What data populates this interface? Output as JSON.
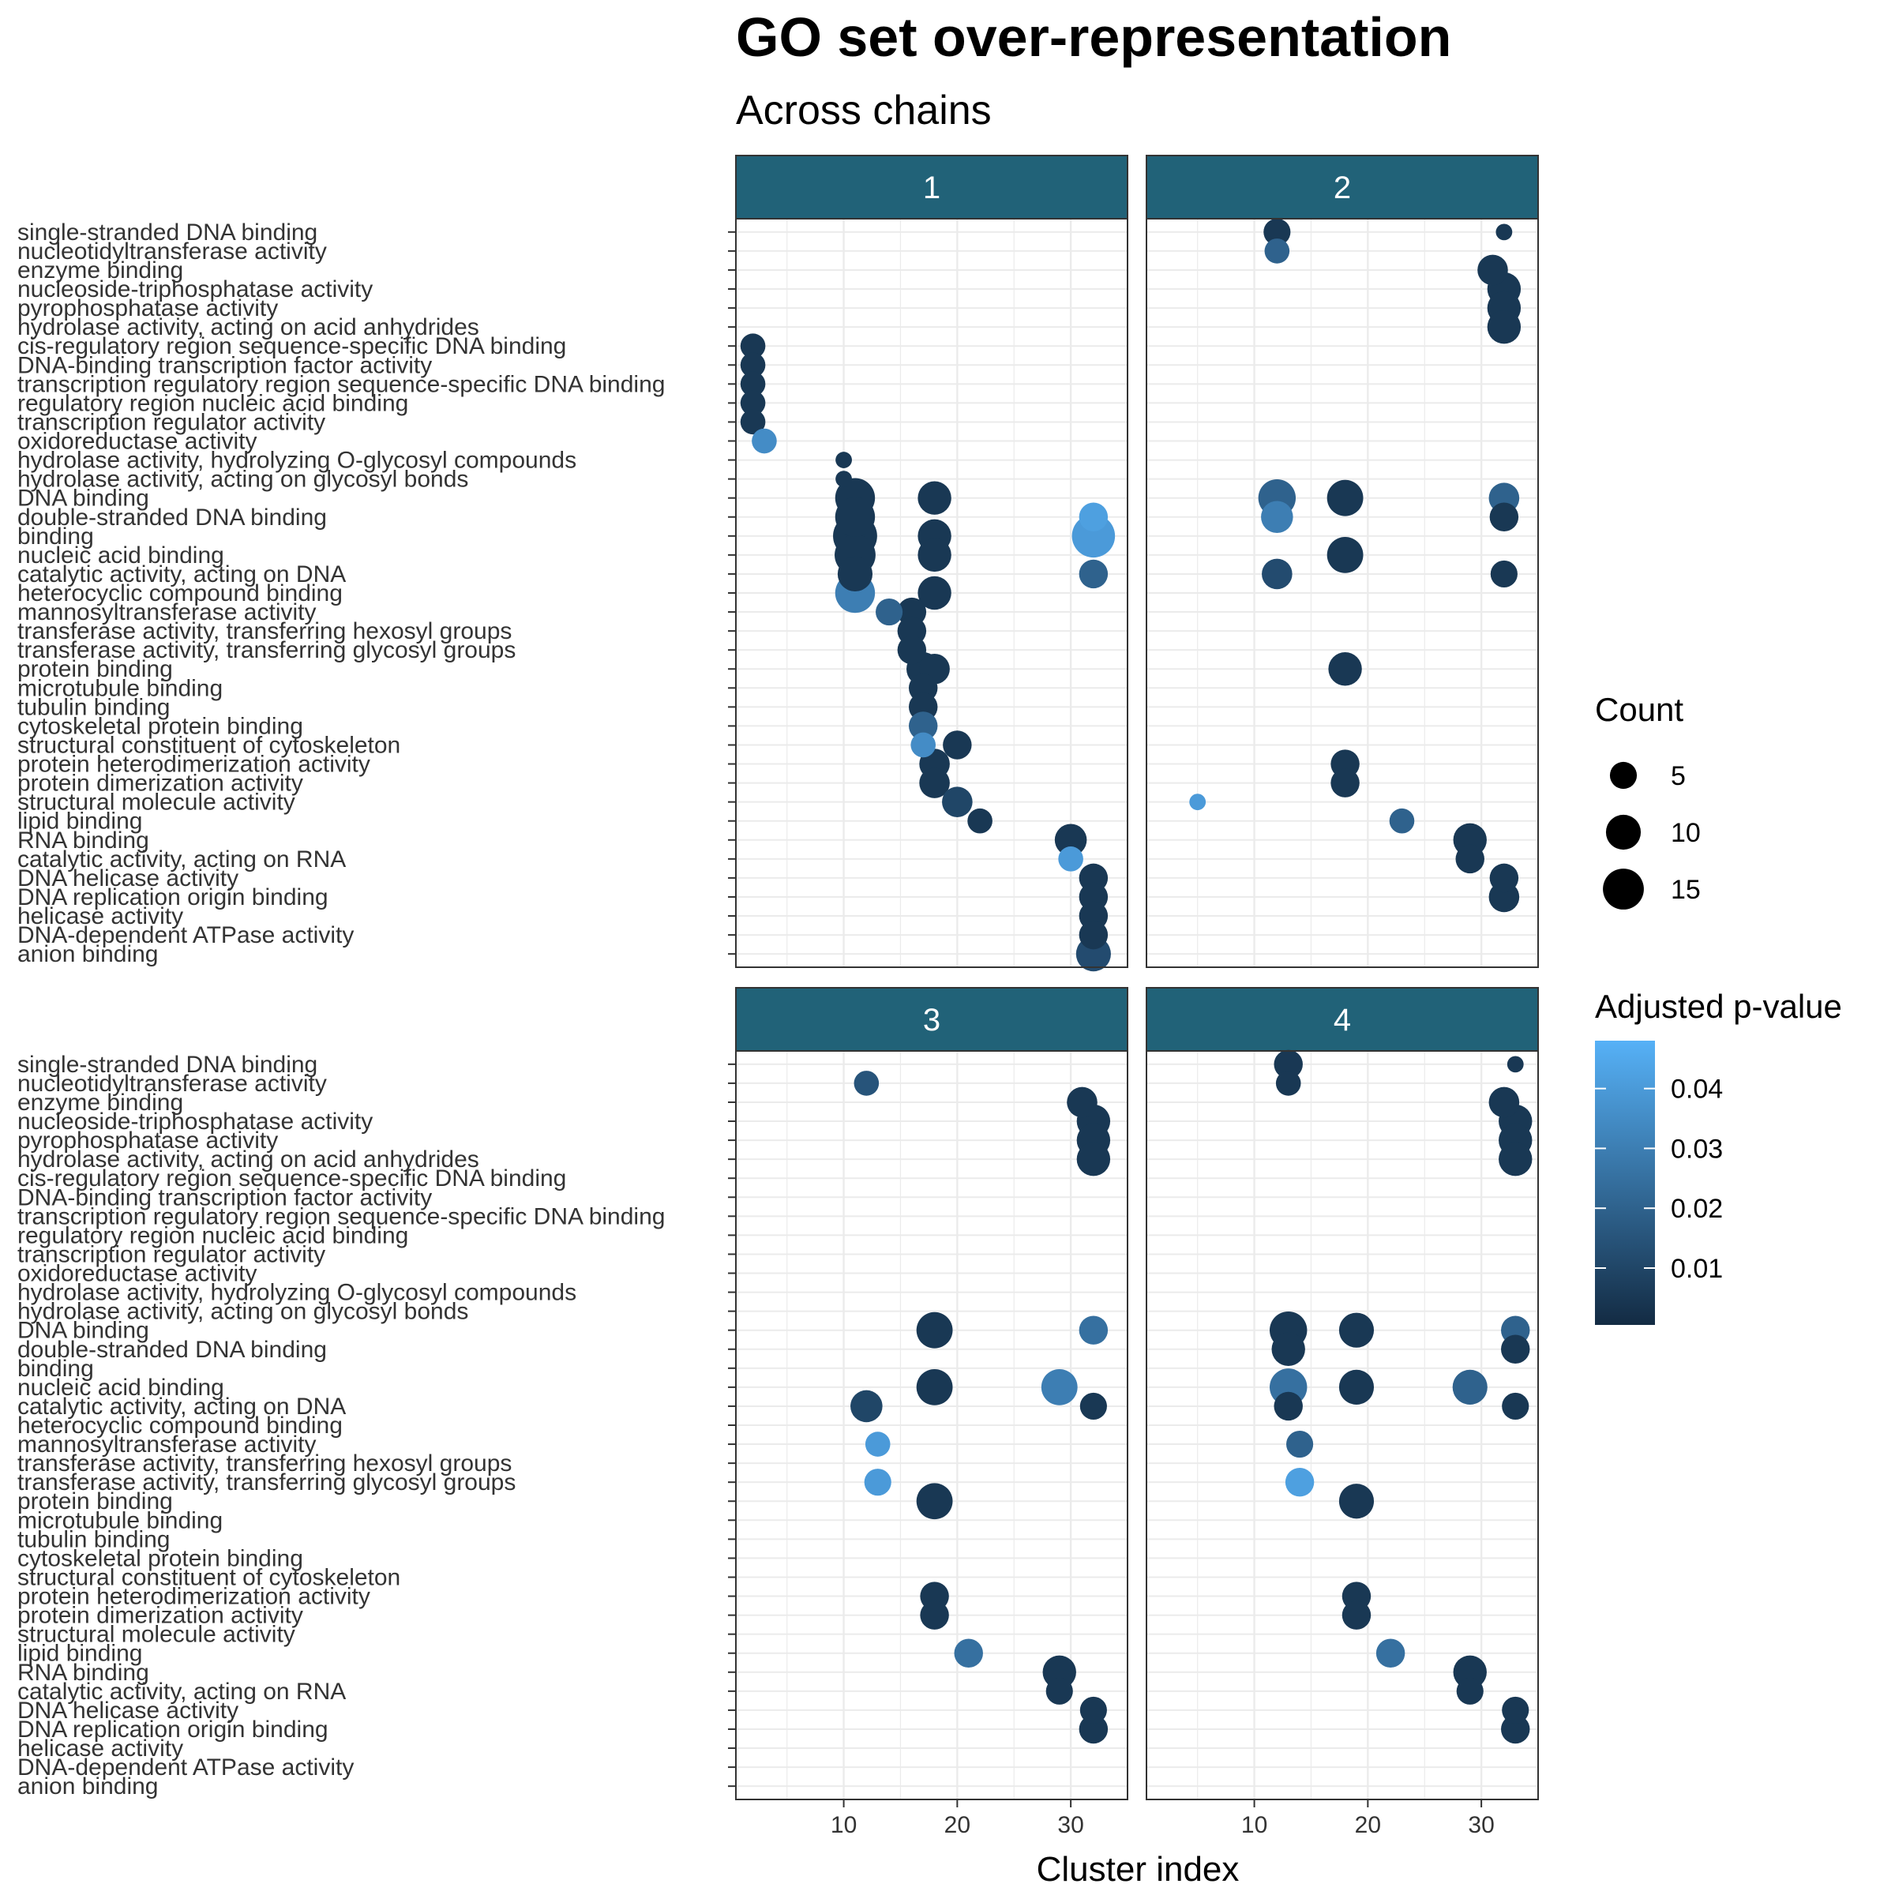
{
  "chart_data": {
    "type": "scatter",
    "title": "GO set over-representation",
    "subtitle": "Across chains",
    "xlabel": "Cluster index",
    "ylabel": "",
    "xlim": [
      0.5,
      35
    ],
    "x_ticks": [
      10,
      20,
      30
    ],
    "grid": true,
    "legend_position": "right",
    "facets": [
      "1",
      "2",
      "3",
      "4"
    ],
    "categories": [
      "single-stranded DNA binding",
      "nucleotidyltransferase activity",
      "enzyme binding",
      "nucleoside-triphosphatase activity",
      "pyrophosphatase activity",
      "hydrolase activity, acting on acid anhydrides",
      "cis-regulatory region sequence-specific DNA binding",
      "DNA-binding transcription factor activity",
      "transcription regulatory region sequence-specific DNA binding",
      "regulatory region nucleic acid binding",
      "transcription regulator activity",
      "oxidoreductase activity",
      "hydrolase activity, hydrolyzing O-glycosyl compounds",
      "hydrolase activity, acting on glycosyl bonds",
      "DNA binding",
      "double-stranded DNA binding",
      "binding",
      "nucleic acid binding",
      "catalytic activity, acting on DNA",
      "heterocyclic compound binding",
      "mannosyltransferase activity",
      "transferase activity, transferring hexosyl groups",
      "transferase activity, transferring glycosyl groups",
      "protein binding",
      "microtubule binding",
      "tubulin binding",
      "cytoskeletal protein binding",
      "structural constituent of cytoskeleton",
      "protein heterodimerization activity",
      "protein dimerization activity",
      "structural molecule activity",
      "lipid binding",
      "RNA binding",
      "catalytic activity, acting on RNA",
      "DNA helicase activity",
      "DNA replication origin binding",
      "helicase activity",
      "DNA-dependent ATPase activity",
      "anion binding"
    ],
    "size_legend": {
      "title": "Count",
      "values": [
        5,
        10,
        15
      ]
    },
    "color_legend": {
      "title": "Adjusted p-value",
      "ticks": [
        0.01,
        0.02,
        0.03,
        0.04
      ],
      "range": [
        0.0005,
        0.048
      ],
      "low_color": "#132B43",
      "high_color": "#56B1F7"
    },
    "colors": {
      "strip": "#216278",
      "grid": "#ebebeb",
      "panel_border": "#333333"
    },
    "points": {
      "1": [
        {
          "term": "cis-regulatory region sequence-specific DNA binding",
          "x": 2,
          "count": 4,
          "p": 0.005
        },
        {
          "term": "DNA-binding transcription factor activity",
          "x": 2,
          "count": 4,
          "p": 0.005
        },
        {
          "term": "transcription regulatory region sequence-specific DNA binding",
          "x": 2,
          "count": 4,
          "p": 0.005
        },
        {
          "term": "regulatory region nucleic acid binding",
          "x": 2,
          "count": 4,
          "p": 0.005
        },
        {
          "term": "transcription regulator activity",
          "x": 2,
          "count": 4,
          "p": 0.005
        },
        {
          "term": "oxidoreductase activity",
          "x": 3,
          "count": 4,
          "p": 0.035
        },
        {
          "term": "hydrolase activity, hydrolyzing O-glycosyl compounds",
          "x": 10,
          "count": 1,
          "p": 0.005
        },
        {
          "term": "hydrolase activity, acting on glycosyl bonds",
          "x": 10,
          "count": 1,
          "p": 0.005
        },
        {
          "term": "DNA binding",
          "x": 11,
          "count": 14,
          "p": 0.005
        },
        {
          "term": "DNA binding",
          "x": 18,
          "count": 9,
          "p": 0.005
        },
        {
          "term": "double-stranded DNA binding",
          "x": 11,
          "count": 14,
          "p": 0.005
        },
        {
          "term": "double-stranded DNA binding",
          "x": 32,
          "count": 6,
          "p": 0.042
        },
        {
          "term": "binding",
          "x": 11,
          "count": 18,
          "p": 0.005
        },
        {
          "term": "binding",
          "x": 18,
          "count": 9,
          "p": 0.005
        },
        {
          "term": "binding",
          "x": 32,
          "count": 17,
          "p": 0.04
        },
        {
          "term": "nucleic acid binding",
          "x": 11,
          "count": 15,
          "p": 0.005
        },
        {
          "term": "nucleic acid binding",
          "x": 18,
          "count": 9,
          "p": 0.005
        },
        {
          "term": "catalytic activity, acting on DNA",
          "x": 11,
          "count": 10,
          "p": 0.005
        },
        {
          "term": "catalytic activity, acting on DNA",
          "x": 32,
          "count": 6,
          "p": 0.02
        },
        {
          "term": "heterocyclic compound binding",
          "x": 11,
          "count": 14,
          "p": 0.03
        },
        {
          "term": "heterocyclic compound binding",
          "x": 18,
          "count": 9,
          "p": 0.005
        },
        {
          "term": "mannosyltransferase activity",
          "x": 14,
          "count": 5,
          "p": 0.02
        },
        {
          "term": "mannosyltransferase activity",
          "x": 16,
          "count": 6,
          "p": 0.005
        },
        {
          "term": "transferase activity, transferring hexosyl groups",
          "x": 16,
          "count": 6,
          "p": 0.005
        },
        {
          "term": "transferase activity, transferring glycosyl groups",
          "x": 16,
          "count": 6,
          "p": 0.005
        },
        {
          "term": "protein binding",
          "x": 17,
          "count": 9,
          "p": 0.005
        },
        {
          "term": "protein binding",
          "x": 18,
          "count": 7,
          "p": 0.005
        },
        {
          "term": "microtubule binding",
          "x": 17,
          "count": 6,
          "p": 0.005
        },
        {
          "term": "tubulin binding",
          "x": 17,
          "count": 6,
          "p": 0.005
        },
        {
          "term": "cytoskeletal protein binding",
          "x": 17,
          "count": 6,
          "p": 0.02
        },
        {
          "term": "structural constituent of cytoskeleton",
          "x": 17,
          "count": 4,
          "p": 0.035
        },
        {
          "term": "structural constituent of cytoskeleton",
          "x": 20,
          "count": 6,
          "p": 0.005
        },
        {
          "term": "protein heterodimerization activity",
          "x": 18,
          "count": 7,
          "p": 0.005
        },
        {
          "term": "protein dimerization activity",
          "x": 18,
          "count": 7,
          "p": 0.005
        },
        {
          "term": "structural molecule activity",
          "x": 20,
          "count": 7,
          "p": 0.01
        },
        {
          "term": "lipid binding",
          "x": 22,
          "count": 4,
          "p": 0.005
        },
        {
          "term": "RNA binding",
          "x": 30,
          "count": 8,
          "p": 0.005
        },
        {
          "term": "catalytic activity, acting on RNA",
          "x": 30,
          "count": 4,
          "p": 0.04
        },
        {
          "term": "DNA helicase activity",
          "x": 32,
          "count": 6,
          "p": 0.005
        },
        {
          "term": "DNA replication origin binding",
          "x": 32,
          "count": 6,
          "p": 0.005
        },
        {
          "term": "helicase activity",
          "x": 32,
          "count": 6,
          "p": 0.005
        },
        {
          "term": "DNA-dependent ATPase activity",
          "x": 32,
          "count": 6,
          "p": 0.005
        },
        {
          "term": "anion binding",
          "x": 32,
          "count": 10,
          "p": 0.012
        }
      ],
      "2": [
        {
          "term": "single-stranded DNA binding",
          "x": 12,
          "count": 5,
          "p": 0.005
        },
        {
          "term": "single-stranded DNA binding",
          "x": 32,
          "count": 1,
          "p": 0.005
        },
        {
          "term": "nucleotidyltransferase activity",
          "x": 12,
          "count": 4,
          "p": 0.02
        },
        {
          "term": "enzyme binding",
          "x": 31,
          "count": 7,
          "p": 0.005
        },
        {
          "term": "nucleoside-triphosphatase activity",
          "x": 32,
          "count": 9,
          "p": 0.005
        },
        {
          "term": "pyrophosphatase activity",
          "x": 32,
          "count": 9,
          "p": 0.005
        },
        {
          "term": "hydrolase activity, acting on acid anhydrides",
          "x": 32,
          "count": 9,
          "p": 0.005
        },
        {
          "term": "DNA binding",
          "x": 12,
          "count": 12,
          "p": 0.02
        },
        {
          "term": "DNA binding",
          "x": 18,
          "count": 11,
          "p": 0.005
        },
        {
          "term": "DNA binding",
          "x": 32,
          "count": 7,
          "p": 0.02
        },
        {
          "term": "double-stranded DNA binding",
          "x": 12,
          "count": 8,
          "p": 0.03
        },
        {
          "term": "double-stranded DNA binding",
          "x": 32,
          "count": 6,
          "p": 0.005
        },
        {
          "term": "nucleic acid binding",
          "x": 18,
          "count": 11,
          "p": 0.005
        },
        {
          "term": "catalytic activity, acting on DNA",
          "x": 12,
          "count": 7,
          "p": 0.012
        },
        {
          "term": "catalytic activity, acting on DNA",
          "x": 32,
          "count": 5,
          "p": 0.005
        },
        {
          "term": "protein binding",
          "x": 18,
          "count": 9,
          "p": 0.005
        },
        {
          "term": "protein heterodimerization activity",
          "x": 18,
          "count": 6,
          "p": 0.005
        },
        {
          "term": "protein dimerization activity",
          "x": 18,
          "count": 6,
          "p": 0.005
        },
        {
          "term": "structural molecule activity",
          "x": 5,
          "count": 1,
          "p": 0.04
        },
        {
          "term": "lipid binding",
          "x": 23,
          "count": 4,
          "p": 0.02
        },
        {
          "term": "RNA binding",
          "x": 29,
          "count": 9,
          "p": 0.005
        },
        {
          "term": "catalytic activity, acting on RNA",
          "x": 29,
          "count": 6,
          "p": 0.005
        },
        {
          "term": "DNA helicase activity",
          "x": 32,
          "count": 6,
          "p": 0.005
        },
        {
          "term": "DNA replication origin binding",
          "x": 32,
          "count": 7,
          "p": 0.005
        }
      ],
      "3": [
        {
          "term": "nucleotidyltransferase activity",
          "x": 12,
          "count": 4,
          "p": 0.015
        },
        {
          "term": "enzyme binding",
          "x": 31,
          "count": 7,
          "p": 0.005
        },
        {
          "term": "nucleoside-triphosphatase activity",
          "x": 32,
          "count": 9,
          "p": 0.005
        },
        {
          "term": "pyrophosphatase activity",
          "x": 32,
          "count": 9,
          "p": 0.005
        },
        {
          "term": "hydrolase activity, acting on acid anhydrides",
          "x": 32,
          "count": 9,
          "p": 0.005
        },
        {
          "term": "DNA binding",
          "x": 18,
          "count": 11,
          "p": 0.005
        },
        {
          "term": "DNA binding",
          "x": 32,
          "count": 6,
          "p": 0.025
        },
        {
          "term": "nucleic acid binding",
          "x": 18,
          "count": 11,
          "p": 0.005
        },
        {
          "term": "nucleic acid binding",
          "x": 29,
          "count": 11,
          "p": 0.03
        },
        {
          "term": "catalytic activity, acting on DNA",
          "x": 12,
          "count": 8,
          "p": 0.01
        },
        {
          "term": "catalytic activity, acting on DNA",
          "x": 32,
          "count": 5,
          "p": 0.005
        },
        {
          "term": "mannosyltransferase activity",
          "x": 13,
          "count": 4,
          "p": 0.04
        },
        {
          "term": "transferase activity, transferring glycosyl groups",
          "x": 13,
          "count": 5,
          "p": 0.04
        },
        {
          "term": "protein binding",
          "x": 18,
          "count": 11,
          "p": 0.005
        },
        {
          "term": "protein heterodimerization activity",
          "x": 18,
          "count": 6,
          "p": 0.005
        },
        {
          "term": "protein dimerization activity",
          "x": 18,
          "count": 6,
          "p": 0.005
        },
        {
          "term": "lipid binding",
          "x": 21,
          "count": 6,
          "p": 0.025
        },
        {
          "term": "RNA binding",
          "x": 29,
          "count": 9,
          "p": 0.005
        },
        {
          "term": "catalytic activity, acting on RNA",
          "x": 29,
          "count": 5,
          "p": 0.005
        },
        {
          "term": "DNA helicase activity",
          "x": 32,
          "count": 5,
          "p": 0.005
        },
        {
          "term": "DNA replication origin binding",
          "x": 32,
          "count": 6,
          "p": 0.005
        }
      ],
      "4": [
        {
          "term": "single-stranded DNA binding",
          "x": 13,
          "count": 6,
          "p": 0.005
        },
        {
          "term": "single-stranded DNA binding",
          "x": 33,
          "count": 1,
          "p": 0.005
        },
        {
          "term": "nucleotidyltransferase activity",
          "x": 13,
          "count": 4,
          "p": 0.005
        },
        {
          "term": "enzyme binding",
          "x": 32,
          "count": 7,
          "p": 0.005
        },
        {
          "term": "nucleoside-triphosphatase activity",
          "x": 33,
          "count": 9,
          "p": 0.005
        },
        {
          "term": "pyrophosphatase activity",
          "x": 33,
          "count": 9,
          "p": 0.005
        },
        {
          "term": "hydrolase activity, acting on acid anhydrides",
          "x": 33,
          "count": 9,
          "p": 0.005
        },
        {
          "term": "DNA binding",
          "x": 13,
          "count": 12,
          "p": 0.005
        },
        {
          "term": "DNA binding",
          "x": 19,
          "count": 10,
          "p": 0.005
        },
        {
          "term": "DNA binding",
          "x": 33,
          "count": 6,
          "p": 0.02
        },
        {
          "term": "double-stranded DNA binding",
          "x": 13,
          "count": 9,
          "p": 0.005
        },
        {
          "term": "double-stranded DNA binding",
          "x": 33,
          "count": 6,
          "p": 0.005
        },
        {
          "term": "nucleic acid binding",
          "x": 13,
          "count": 12,
          "p": 0.025
        },
        {
          "term": "nucleic acid binding",
          "x": 19,
          "count": 10,
          "p": 0.005
        },
        {
          "term": "nucleic acid binding",
          "x": 29,
          "count": 10,
          "p": 0.02
        },
        {
          "term": "catalytic activity, acting on DNA",
          "x": 13,
          "count": 6,
          "p": 0.005
        },
        {
          "term": "catalytic activity, acting on DNA",
          "x": 33,
          "count": 5,
          "p": 0.005
        },
        {
          "term": "mannosyltransferase activity",
          "x": 14,
          "count": 5,
          "p": 0.02
        },
        {
          "term": "transferase activity, transferring glycosyl groups",
          "x": 14,
          "count": 6,
          "p": 0.042
        },
        {
          "term": "protein binding",
          "x": 19,
          "count": 10,
          "p": 0.005
        },
        {
          "term": "protein heterodimerization activity",
          "x": 19,
          "count": 6,
          "p": 0.005
        },
        {
          "term": "protein dimerization activity",
          "x": 19,
          "count": 6,
          "p": 0.005
        },
        {
          "term": "lipid binding",
          "x": 22,
          "count": 6,
          "p": 0.025
        },
        {
          "term": "RNA binding",
          "x": 29,
          "count": 9,
          "p": 0.005
        },
        {
          "term": "catalytic activity, acting on RNA",
          "x": 29,
          "count": 5,
          "p": 0.005
        },
        {
          "term": "DNA helicase activity",
          "x": 33,
          "count": 5,
          "p": 0.005
        },
        {
          "term": "DNA replication origin binding",
          "x": 33,
          "count": 6,
          "p": 0.005
        }
      ]
    }
  }
}
